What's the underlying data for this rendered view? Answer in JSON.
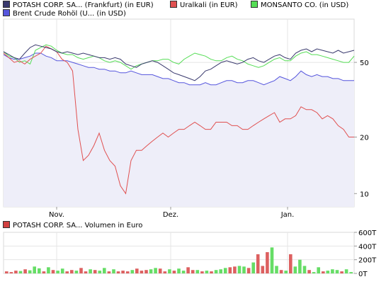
{
  "legend": [
    {
      "label": "POTASH CORP. SA... (Frankfurt) (in EUR)",
      "color": "#3a3a6e"
    },
    {
      "label": "Uralkali (in EUR)",
      "color": "#e05050"
    },
    {
      "label": "MONSANTO CO. (in USD)",
      "color": "#55dd55"
    },
    {
      "label": "Brent Crude Rohöl (U... (in USD)",
      "color": "#5555dd"
    }
  ],
  "volume_legend": {
    "label": "POTASH CORP. SA... Volumen in Euro",
    "color": "#d04040"
  },
  "chart_data": [
    {
      "type": "line",
      "scale": "log",
      "x_ticks": [
        "Nov.",
        "Dez.",
        "Jan."
      ],
      "y_ticks": [
        "50",
        "20",
        "10"
      ],
      "ylim": [
        8.5,
        85
      ],
      "area_fill": "Brent Crude Rohöl (U... (in USD)",
      "series": [
        {
          "name": "POTASH CORP. SA... (Frankfurt) (in EUR)",
          "color": "#3a3a6e",
          "values": [
            57,
            55,
            53,
            52,
            56,
            60,
            62,
            61,
            60,
            59,
            57,
            56,
            57,
            56,
            55,
            56,
            55,
            54,
            53,
            53,
            52,
            53,
            52,
            49,
            48,
            47,
            49,
            50,
            51,
            50,
            48,
            46,
            44,
            43,
            42,
            41,
            40,
            42,
            45,
            46,
            48,
            50,
            51,
            50,
            49,
            50,
            52,
            53,
            51,
            50,
            52,
            54,
            55,
            53,
            52,
            56,
            58,
            59,
            57,
            59,
            58,
            57,
            56,
            58,
            56,
            57,
            58
          ]
        },
        {
          "name": "Uralkali (in EUR)",
          "color": "#e05050",
          "values": [
            56,
            53,
            50,
            51,
            49,
            52,
            54,
            56,
            61,
            59,
            57,
            52,
            50,
            45,
            22,
            15,
            16,
            18,
            21,
            17,
            15,
            14,
            11,
            10,
            15,
            17,
            17,
            18,
            19,
            20,
            21,
            20,
            21,
            22,
            22,
            23,
            24,
            23,
            22,
            22,
            24,
            24,
            24,
            23,
            23,
            22,
            22,
            23,
            24,
            25,
            26,
            27,
            24,
            25,
            25,
            26,
            29,
            28,
            28,
            27,
            25,
            26,
            25,
            23,
            22,
            20,
            20
          ]
        },
        {
          "name": "MONSANTO CO. (in USD)",
          "color": "#55dd55",
          "values": [
            57,
            54,
            53,
            50,
            51,
            49,
            58,
            60,
            62,
            61,
            58,
            56,
            55,
            55,
            53,
            52,
            53,
            54,
            53,
            51,
            50,
            51,
            50,
            48,
            46,
            48,
            49,
            50,
            51,
            51,
            52,
            52,
            50,
            49,
            52,
            54,
            56,
            55,
            54,
            52,
            51,
            51,
            53,
            54,
            52,
            51,
            49,
            48,
            47,
            48,
            50,
            52,
            53,
            51,
            51,
            54,
            56,
            57,
            55,
            55,
            54,
            53,
            52,
            51,
            50,
            50,
            54
          ]
        },
        {
          "name": "Brent Crude Rohöl (U... (in USD)",
          "color": "#5555dd",
          "values": [
            55,
            53,
            52,
            52,
            53,
            54,
            56,
            56,
            54,
            53,
            51,
            51,
            51,
            50,
            49,
            48,
            47,
            47,
            46,
            46,
            45,
            45,
            44,
            44,
            45,
            44,
            43,
            43,
            43,
            42,
            41,
            41,
            40,
            39,
            39,
            38,
            38,
            38,
            39,
            38,
            38,
            39,
            40,
            40,
            39,
            39,
            40,
            40,
            39,
            38,
            39,
            40,
            42,
            41,
            40,
            42,
            45,
            43,
            42,
            43,
            42,
            42,
            41,
            41,
            40,
            40,
            40
          ]
        }
      ]
    },
    {
      "type": "bar",
      "y_ticks": [
        "600T",
        "400T",
        "200T",
        "0T"
      ],
      "ylim": [
        0,
        600
      ],
      "values": [
        30,
        20,
        40,
        35,
        60,
        45,
        100,
        75,
        30,
        90,
        50,
        40,
        70,
        30,
        50,
        40,
        80,
        30,
        60,
        50,
        40,
        80,
        30,
        60,
        30,
        40,
        30,
        50,
        70,
        40,
        50,
        60,
        80,
        70,
        30,
        60,
        40,
        70,
        40,
        90,
        50,
        50,
        30,
        40,
        30,
        50,
        60,
        80,
        90,
        100,
        110,
        100,
        80,
        160,
        280,
        110,
        310,
        380,
        110,
        50,
        40,
        280,
        100,
        200,
        110,
        50,
        20,
        90,
        30,
        40,
        60,
        50,
        30,
        60,
        20
      ],
      "colors": [
        "r",
        "r",
        "r",
        "g",
        "r",
        "g",
        "g",
        "g",
        "r",
        "g",
        "r",
        "g",
        "g",
        "r",
        "r",
        "g",
        "r",
        "r",
        "g",
        "r",
        "g",
        "g",
        "r",
        "g",
        "r",
        "r",
        "r",
        "g",
        "r",
        "r",
        "r",
        "g",
        "g",
        "r",
        "r",
        "g",
        "r",
        "g",
        "g",
        "r",
        "r",
        "g",
        "r",
        "g",
        "r",
        "g",
        "g",
        "g",
        "r",
        "r",
        "g",
        "g",
        "r",
        "g",
        "r",
        "r",
        "r",
        "g",
        "g",
        "r",
        "g",
        "r",
        "g",
        "g",
        "g",
        "r",
        "g",
        "g",
        "r",
        "g",
        "g",
        "g",
        "r",
        "g",
        "g"
      ],
      "bar_colors": {
        "r": "#dd6060",
        "g": "#66dd66"
      }
    }
  ]
}
